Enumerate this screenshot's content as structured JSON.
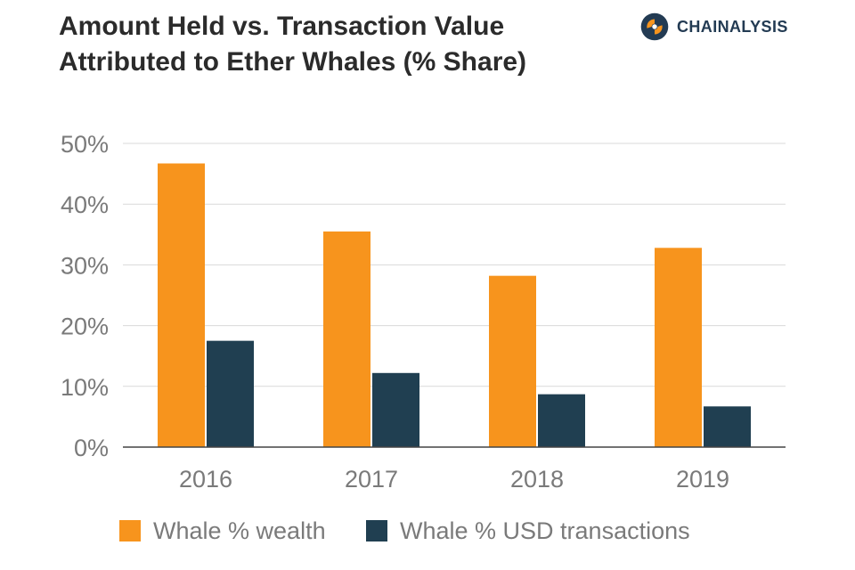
{
  "header": {
    "title_line1": "Amount Held vs. Transaction Value",
    "title_line2": "Attributed to Ether Whales (% Share)"
  },
  "brand": {
    "name": "CHAINALYSIS",
    "icon": "chainalysis-logo-icon"
  },
  "colors": {
    "wealth": "#f7941d",
    "transactions": "#203f51",
    "grid": "#d9d9d9",
    "axis": "#444444",
    "tick": "#7a7a7a"
  },
  "chart_data": {
    "type": "bar",
    "categories": [
      "2016",
      "2017",
      "2018",
      "2019"
    ],
    "series": [
      {
        "name": "Whale % wealth",
        "values": [
          46.7,
          35.5,
          28.2,
          32.8
        ]
      },
      {
        "name": "Whale % USD transactions",
        "values": [
          17.5,
          12.2,
          8.7,
          6.7
        ]
      }
    ],
    "title": "Amount Held vs. Transaction Value Attributed to Ether Whales (% Share)",
    "xlabel": "",
    "ylabel": "",
    "ylim": [
      0,
      50
    ],
    "yticks": [
      "0%",
      "10%",
      "20%",
      "30%",
      "40%",
      "50%"
    ],
    "grid": true,
    "legend_position": "bottom"
  }
}
